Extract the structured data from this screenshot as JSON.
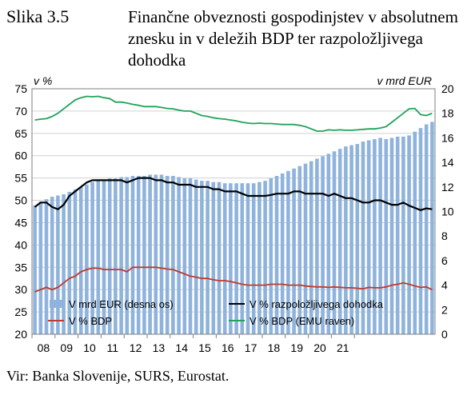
{
  "figure": {
    "label": "Slika 3.5",
    "title": "Finančne obveznosti gospodinjstev v absolutnem znesku in v deležih BDP ter razpoložljivega dohodka",
    "source": "Vir: Banka Slovenije, SURS, Eurostat."
  },
  "colors": {
    "bars": "#8fb3dc",
    "black_line": "#000000",
    "red_line": "#c0392b",
    "green_line": "#21a35a",
    "grid": "#d0d0d0"
  },
  "chart_data": {
    "type": "bar+line",
    "left_axis": {
      "label": "v %",
      "min": 20,
      "max": 75,
      "ticks": [
        20,
        25,
        30,
        35,
        40,
        45,
        50,
        55,
        60,
        65,
        70,
        75
      ]
    },
    "right_axis": {
      "label": "v mrd EUR",
      "min": 0,
      "max": 20,
      "ticks": [
        0,
        2,
        4,
        6,
        8,
        10,
        12,
        14,
        16,
        18,
        20
      ]
    },
    "x_tick_labels": [
      "08",
      "09",
      "10",
      "11",
      "12",
      "13",
      "14",
      "15",
      "16",
      "17",
      "18",
      "19",
      "20",
      "21"
    ],
    "period_start_year": 2008,
    "periods_per_year": 4,
    "grid": "horizontal",
    "legend": [
      {
        "label": "V mrd EUR (desna os)",
        "series": "bars"
      },
      {
        "label": "V % razpoložljivega dohodka",
        "series": "black_line"
      },
      {
        "label": "V % BDP",
        "series": "red_line"
      },
      {
        "label": "V % BDP (EMU raven)",
        "series": "green_line"
      }
    ],
    "series": {
      "bars": [
        10.5,
        10.8,
        11.0,
        11.2,
        11.3,
        11.4,
        11.6,
        11.8,
        12.0,
        12.2,
        12.4,
        12.5,
        12.6,
        12.7,
        12.7,
        12.8,
        12.8,
        12.9,
        12.9,
        12.9,
        13.0,
        13.0,
        13.0,
        12.9,
        12.9,
        12.8,
        12.7,
        12.7,
        12.6,
        12.5,
        12.5,
        12.4,
        12.4,
        12.3,
        12.3,
        12.3,
        12.3,
        12.3,
        12.3,
        12.4,
        12.5,
        12.7,
        12.9,
        13.1,
        13.3,
        13.5,
        13.7,
        13.9,
        14.1,
        14.3,
        14.5,
        14.7,
        14.9,
        15.1,
        15.3,
        15.4,
        15.5,
        15.7,
        15.8,
        15.9,
        16.0,
        15.9,
        16.0,
        16.1,
        16.1,
        16.2,
        16.5,
        16.8,
        17.1,
        17.3
      ],
      "black_line": [
        48.5,
        49.5,
        49.5,
        48.5,
        48,
        49,
        51,
        52,
        53,
        54,
        54.5,
        54.5,
        54.5,
        54.5,
        54.5,
        54.5,
        54,
        54.5,
        55,
        55,
        55,
        54.5,
        54.5,
        54,
        54,
        53.5,
        53.5,
        53.5,
        53,
        53,
        53,
        52.5,
        52.5,
        52,
        52,
        52,
        51.5,
        51,
        51,
        51,
        51,
        51.2,
        51.5,
        51.5,
        51.5,
        52,
        52,
        51.5,
        51.5,
        51.5,
        51.5,
        51,
        51.5,
        51,
        50.5,
        50.5,
        50,
        49.5,
        49.5,
        50,
        50,
        49.5,
        49,
        49,
        49.5,
        48.8,
        48.3,
        47.8,
        48.2,
        48
      ],
      "red_line": [
        29.5,
        30,
        30.5,
        30,
        30.5,
        31.5,
        32.5,
        33,
        34,
        34.5,
        34.8,
        34.8,
        34.5,
        34.5,
        34.5,
        34.5,
        34,
        35,
        35,
        35,
        35,
        35,
        34.8,
        34.6,
        34.5,
        34,
        33.5,
        33,
        32.8,
        32.5,
        32.5,
        32.2,
        32,
        32,
        31.8,
        31.5,
        31.2,
        31,
        31,
        31,
        31,
        31.2,
        31.2,
        31.2,
        31,
        31,
        31,
        30.8,
        30.7,
        30.6,
        30.6,
        30.5,
        30.6,
        30.5,
        30.4,
        30.4,
        30.3,
        30.2,
        30.5,
        30.4,
        30.4,
        30.6,
        31,
        31.2,
        31.5,
        31.2,
        30.8,
        30.5,
        30.6,
        30
      ],
      "green_line": [
        68,
        68.2,
        68.3,
        68.8,
        69.5,
        70.5,
        71.5,
        72.5,
        73,
        73.3,
        73.2,
        73.3,
        73,
        72.8,
        72,
        72,
        71.8,
        71.5,
        71.3,
        71,
        71,
        71,
        70.8,
        70.6,
        70.5,
        70.2,
        70,
        70,
        69.5,
        69,
        68.8,
        68.5,
        68.3,
        68.2,
        68,
        67.8,
        67.5,
        67.3,
        67.2,
        67.3,
        67.2,
        67.2,
        67.1,
        67,
        67,
        67,
        66.8,
        66.5,
        66,
        65.5,
        65.5,
        65.8,
        65.7,
        65.8,
        65.7,
        65.7,
        65.8,
        65.9,
        66,
        66,
        66.2,
        66.5,
        67.5,
        68.5,
        69.5,
        70.5,
        70.6,
        69.2,
        69,
        69.5
      ]
    }
  }
}
